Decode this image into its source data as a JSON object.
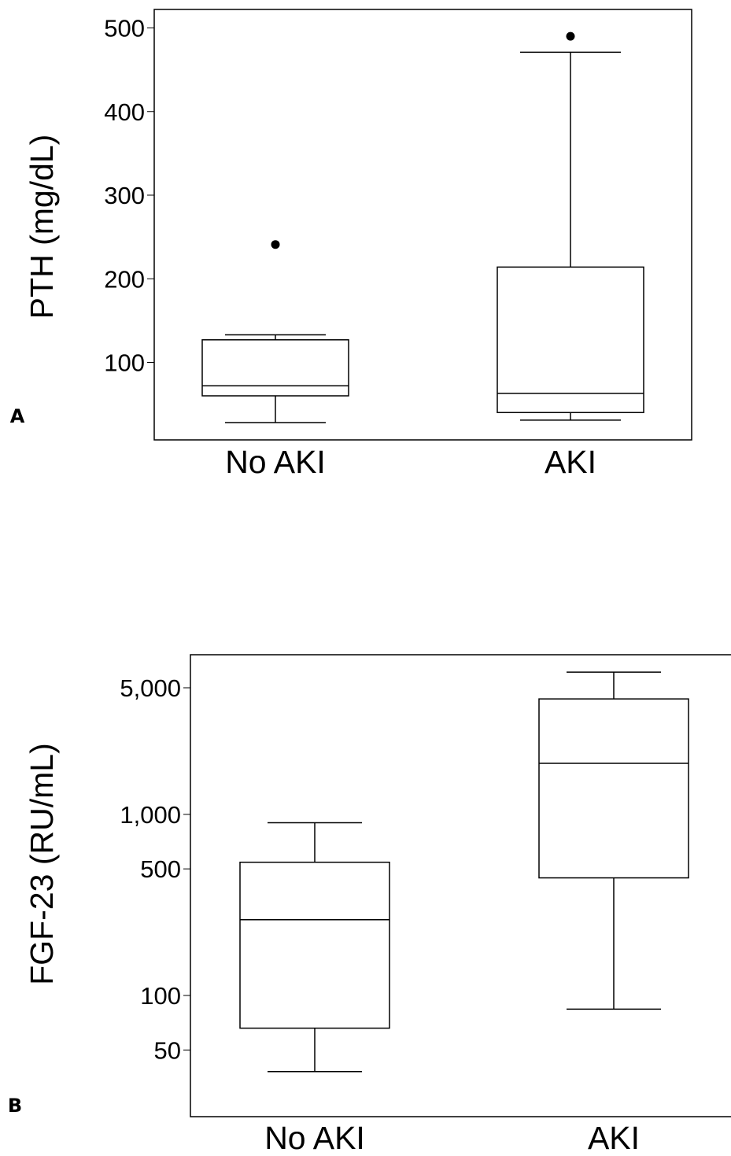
{
  "chart_data": [
    {
      "panel_label": "A",
      "type": "box",
      "ylabel": "PTH (mg/dL)",
      "xlabel": "",
      "y_scale": "linear",
      "ylim": [
        5,
        520
      ],
      "y_ticks": [
        100,
        200,
        300,
        400,
        500
      ],
      "y_tick_labels": [
        "100",
        "200",
        "300",
        "400",
        "500"
      ],
      "categories": [
        "No AKI",
        "AKI"
      ],
      "boxes": [
        {
          "whisker_low": 28,
          "q1": 60,
          "median": 72,
          "q3": 127,
          "whisker_high": 133,
          "outliers": [
            241
          ]
        },
        {
          "whisker_low": 31,
          "q1": 40,
          "median": 63,
          "q3": 214,
          "whisker_high": 471,
          "outliers": [
            490
          ]
        }
      ],
      "grid": false
    },
    {
      "panel_label": "B",
      "type": "box",
      "ylabel": "FGF-23 (RU/mL)",
      "xlabel": "",
      "y_scale": "log",
      "ylim": [
        20,
        15000
      ],
      "y_ticks": [
        50,
        100,
        500,
        1000,
        5000
      ],
      "y_tick_labels": [
        "50",
        "100",
        "500",
        "1,000",
        "5,000"
      ],
      "categories": [
        "No AKI",
        "AKI"
      ],
      "boxes": [
        {
          "whisker_low": 38,
          "q1": 66,
          "median": 262,
          "q3": 544,
          "whisker_high": 899,
          "outliers": []
        },
        {
          "whisker_low": 84,
          "q1": 446,
          "median": 1914,
          "q3": 4340,
          "whisker_high": 6100,
          "outliers": []
        }
      ],
      "grid": false
    }
  ]
}
